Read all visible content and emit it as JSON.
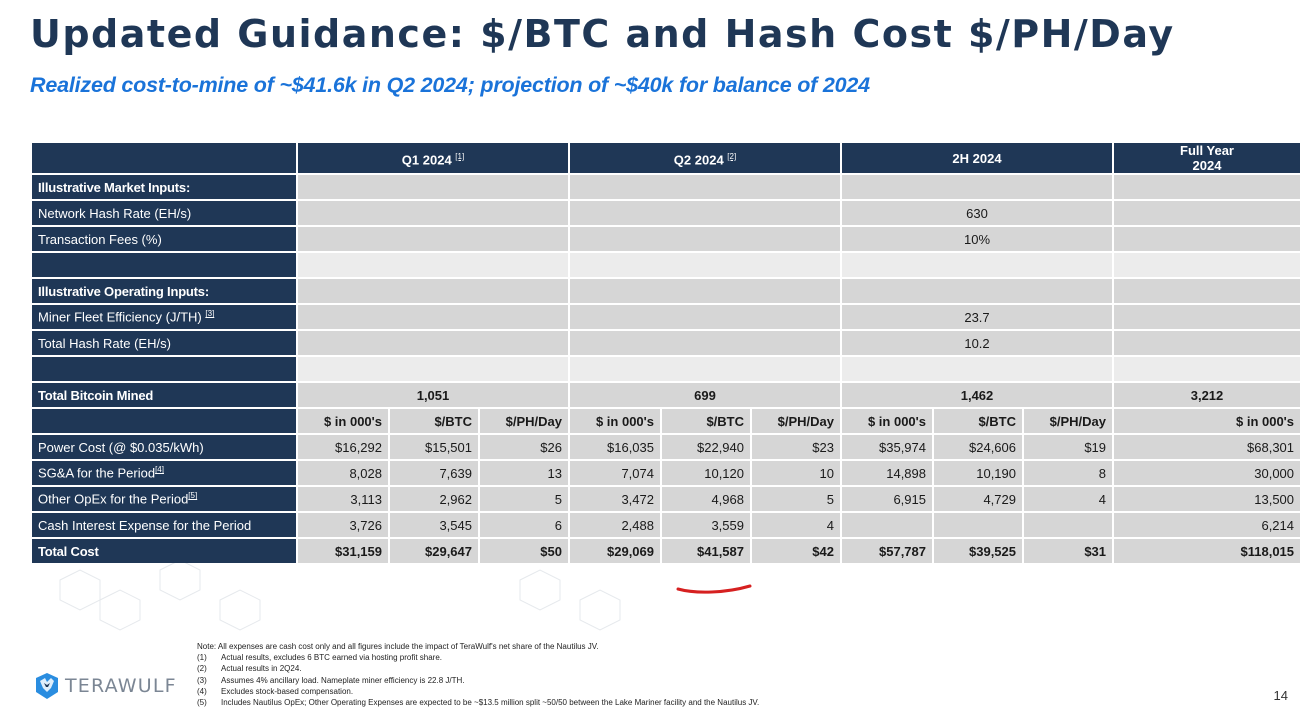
{
  "title": "Updated Guidance: $/BTC and Hash Cost $/PH/Day",
  "subtitle": "Realized cost-to-mine of ~$41.6k in Q2 2024; projection of ~$40k for balance of 2024",
  "table": {
    "periods": [
      {
        "label": "Q1 2024",
        "fn": "[1]"
      },
      {
        "label": "Q2 2024",
        "fn": "[2]"
      },
      {
        "label": "2H 2024",
        "fn": ""
      },
      {
        "label_line1": "Full Year",
        "label_line2": "2024"
      }
    ],
    "market_inputs_label": "Illustrative Market Inputs:",
    "network_hash_rate": {
      "label": "Network Hash Rate (EH/s)",
      "value": "630"
    },
    "transaction_fees": {
      "label": "Transaction Fees (%)",
      "value": "10%"
    },
    "operating_inputs_label": "Illustrative Operating Inputs:",
    "miner_efficiency": {
      "label": "Miner Fleet Efficiency (J/TH)",
      "fn": "[3]",
      "value": "23.7"
    },
    "total_hash_rate": {
      "label": "Total Hash Rate (EH/s)",
      "value": "10.2"
    },
    "total_bitcoin_mined": {
      "label": "Total Bitcoin Mined",
      "q1": "1,051",
      "q2": "699",
      "h2": "1,462",
      "fy": "3,212"
    },
    "subheaders": {
      "k": "$ in 000's",
      "btc": "$/BTC",
      "ph": "$/PH/Day",
      "fy": "$ in 000's"
    },
    "rows": [
      {
        "label": "Power Cost (@ $0.035/kWh)",
        "fn": "",
        "q1": [
          "$16,292",
          "$15,501",
          "$26"
        ],
        "q2": [
          "$16,035",
          "$22,940",
          "$23"
        ],
        "h2": [
          "$35,974",
          "$24,606",
          "$19"
        ],
        "fy": "$68,301"
      },
      {
        "label": "SG&A for the Period",
        "fn": "[4]",
        "q1": [
          "8,028",
          "7,639",
          "13"
        ],
        "q2": [
          "7,074",
          "10,120",
          "10"
        ],
        "h2": [
          "14,898",
          "10,190",
          "8"
        ],
        "fy": "30,000"
      },
      {
        "label": "Other OpEx for the Period",
        "fn": "[5]",
        "q1": [
          "3,113",
          "2,962",
          "5"
        ],
        "q2": [
          "3,472",
          "4,968",
          "5"
        ],
        "h2": [
          "6,915",
          "4,729",
          "4"
        ],
        "fy": "13,500"
      },
      {
        "label": "Cash Interest Expense for the Period",
        "fn": "",
        "q1": [
          "3,726",
          "3,545",
          "6"
        ],
        "q2": [
          "2,488",
          "3,559",
          "4"
        ],
        "h2": [
          "",
          "",
          ""
        ],
        "fy": "6,214"
      }
    ],
    "total_cost": {
      "label": "Total Cost",
      "q1": [
        "$31,159",
        "$29,647",
        "$50"
      ],
      "q2": [
        "$29,069",
        "$41,587",
        "$42"
      ],
      "h2": [
        "$57,787",
        "$39,525",
        "$31"
      ],
      "fy": "$118,015"
    }
  },
  "notes": {
    "intro": "Note: All expenses are cash cost only and all figures include the impact of TeraWulf's net share of the Nautilus JV.",
    "items": [
      {
        "num": "(1)",
        "text": "Actual results, excludes 6 BTC earned via hosting profit share."
      },
      {
        "num": "(2)",
        "text": "Actual results in 2Q24."
      },
      {
        "num": "(3)",
        "text": "Assumes 4% ancillary load. Nameplate miner efficiency is 22.8 J/TH."
      },
      {
        "num": "(4)",
        "text": "Excludes stock-based compensation."
      },
      {
        "num": "(5)",
        "text": "Includes Nautilus OpEx; Other Operating Expenses are expected to be ~$13.5 million split ~50/50 between the Lake Mariner facility and the Nautilus JV."
      }
    ]
  },
  "logo": {
    "text": "TERAWULF",
    "icon": "wolf-icon"
  },
  "page_number": "14",
  "colors": {
    "navy": "#1f3756",
    "accent_blue": "#1a73d9",
    "grey_cell": "#d6d6d6",
    "light_cell": "#ececec",
    "highlight_red": "#d62020"
  }
}
